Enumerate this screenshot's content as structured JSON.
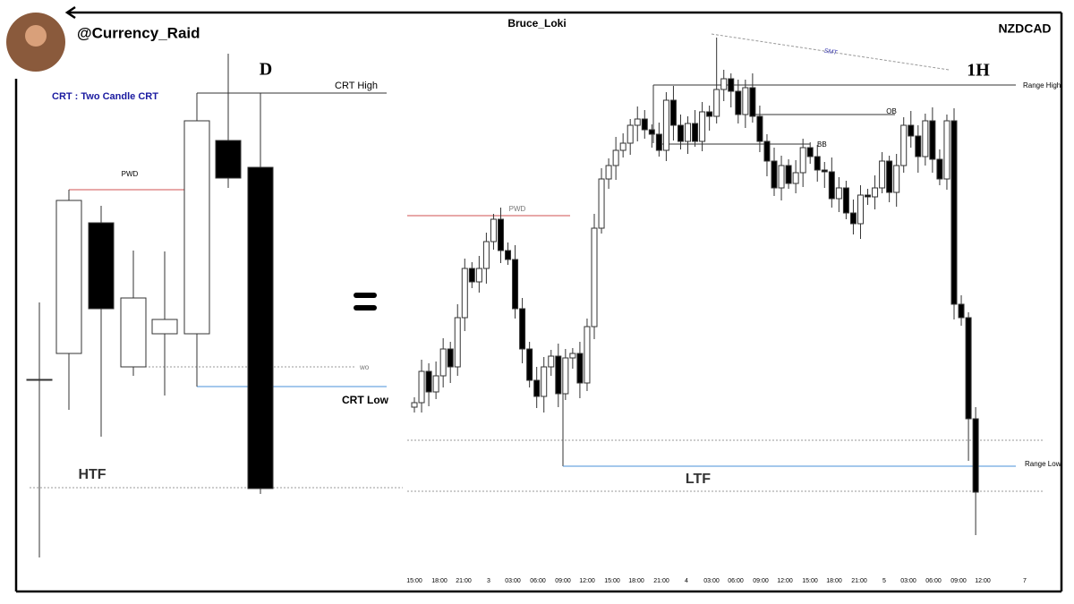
{
  "header": {
    "handle": "@Currency_Raid",
    "author": "Bruce_Loki",
    "pair": "NZDCAD"
  },
  "htf": {
    "subtitle": "CRT : Two Candle CRT",
    "timeframe": "D",
    "crt_high": "CRT High",
    "pwd": "PWD",
    "wo": "wo",
    "crt_low": "CRT Low",
    "label": "HTF"
  },
  "ltf": {
    "smt": "SMT",
    "timeframe": "1H",
    "range_high": "Range High",
    "ob": "OB",
    "bb": "BB",
    "pwd": "PWD",
    "range_low": "Range Low",
    "label": "LTF",
    "x_labels": [
      "15:00",
      "18:00",
      "21:00",
      "3",
      "03:00",
      "06:00",
      "09:00",
      "12:00",
      "15:00",
      "18:00",
      "21:00",
      "4",
      "03:00",
      "06:00",
      "09:00",
      "12:00",
      "15:00",
      "18:00",
      "21:00",
      "5",
      "03:00",
      "06:00",
      "09:00",
      "12:00",
      "7"
    ]
  }
}
